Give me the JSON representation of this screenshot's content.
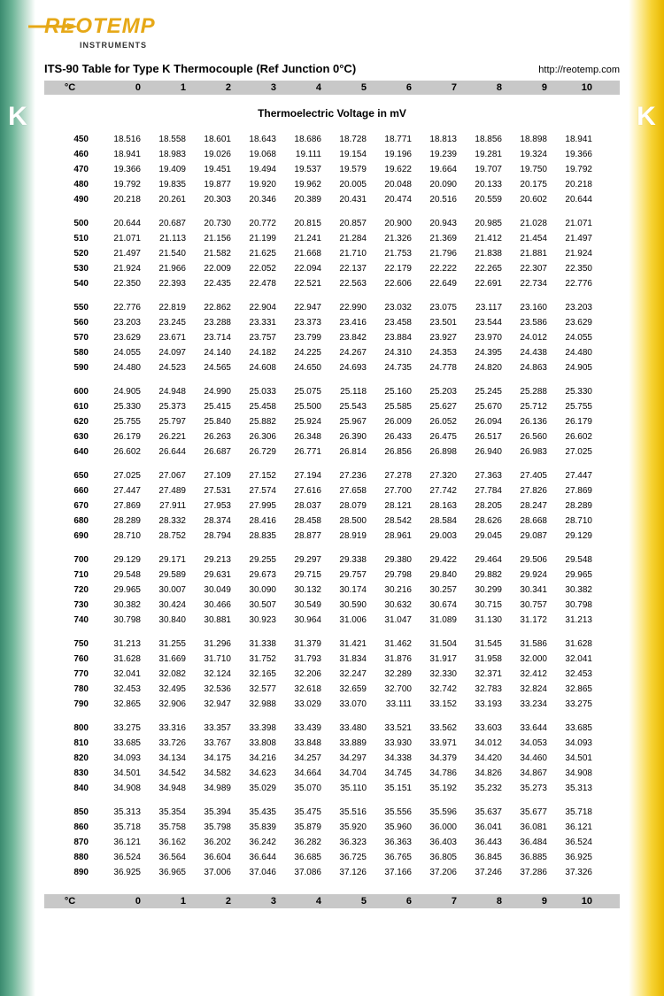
{
  "logo": {
    "brand": "REOTEMP",
    "sub": "INSTRUMENTS"
  },
  "title": "ITS-90 Table for Type K Thermocouple (Ref Junction 0°C)",
  "url": "http://reotemp.com",
  "side_letter": "K",
  "subtitle": "Thermoelectric Voltage in mV",
  "header_key": "°C",
  "cols": [
    "0",
    "1",
    "2",
    "3",
    "4",
    "5",
    "6",
    "7",
    "8",
    "9",
    "10"
  ],
  "colors": {
    "left_grad_from": "#3a8a6f",
    "right_grad_from": "#e8b800",
    "logo": "#e6a817",
    "header_bg": "#c8c8c8"
  },
  "blocks": [
    [
      {
        "t": "450",
        "v": [
          "18.516",
          "18.558",
          "18.601",
          "18.643",
          "18.686",
          "18.728",
          "18.771",
          "18.813",
          "18.856",
          "18.898",
          "18.941"
        ]
      },
      {
        "t": "460",
        "v": [
          "18.941",
          "18.983",
          "19.026",
          "19.068",
          "19.111",
          "19.154",
          "19.196",
          "19.239",
          "19.281",
          "19.324",
          "19.366"
        ]
      },
      {
        "t": "470",
        "v": [
          "19.366",
          "19.409",
          "19.451",
          "19.494",
          "19.537",
          "19.579",
          "19.622",
          "19.664",
          "19.707",
          "19.750",
          "19.792"
        ]
      },
      {
        "t": "480",
        "v": [
          "19.792",
          "19.835",
          "19.877",
          "19.920",
          "19.962",
          "20.005",
          "20.048",
          "20.090",
          "20.133",
          "20.175",
          "20.218"
        ]
      },
      {
        "t": "490",
        "v": [
          "20.218",
          "20.261",
          "20.303",
          "20.346",
          "20.389",
          "20.431",
          "20.474",
          "20.516",
          "20.559",
          "20.602",
          "20.644"
        ]
      }
    ],
    [
      {
        "t": "500",
        "v": [
          "20.644",
          "20.687",
          "20.730",
          "20.772",
          "20.815",
          "20.857",
          "20.900",
          "20.943",
          "20.985",
          "21.028",
          "21.071"
        ]
      },
      {
        "t": "510",
        "v": [
          "21.071",
          "21.113",
          "21.156",
          "21.199",
          "21.241",
          "21.284",
          "21.326",
          "21.369",
          "21.412",
          "21.454",
          "21.497"
        ]
      },
      {
        "t": "520",
        "v": [
          "21.497",
          "21.540",
          "21.582",
          "21.625",
          "21.668",
          "21.710",
          "21.753",
          "21.796",
          "21.838",
          "21.881",
          "21.924"
        ]
      },
      {
        "t": "530",
        "v": [
          "21.924",
          "21.966",
          "22.009",
          "22.052",
          "22.094",
          "22.137",
          "22.179",
          "22.222",
          "22.265",
          "22.307",
          "22.350"
        ]
      },
      {
        "t": "540",
        "v": [
          "22.350",
          "22.393",
          "22.435",
          "22.478",
          "22.521",
          "22.563",
          "22.606",
          "22.649",
          "22.691",
          "22.734",
          "22.776"
        ]
      }
    ],
    [
      {
        "t": "550",
        "v": [
          "22.776",
          "22.819",
          "22.862",
          "22.904",
          "22.947",
          "22.990",
          "23.032",
          "23.075",
          "23.117",
          "23.160",
          "23.203"
        ]
      },
      {
        "t": "560",
        "v": [
          "23.203",
          "23.245",
          "23.288",
          "23.331",
          "23.373",
          "23.416",
          "23.458",
          "23.501",
          "23.544",
          "23.586",
          "23.629"
        ]
      },
      {
        "t": "570",
        "v": [
          "23.629",
          "23.671",
          "23.714",
          "23.757",
          "23.799",
          "23.842",
          "23.884",
          "23.927",
          "23.970",
          "24.012",
          "24.055"
        ]
      },
      {
        "t": "580",
        "v": [
          "24.055",
          "24.097",
          "24.140",
          "24.182",
          "24.225",
          "24.267",
          "24.310",
          "24.353",
          "24.395",
          "24.438",
          "24.480"
        ]
      },
      {
        "t": "590",
        "v": [
          "24.480",
          "24.523",
          "24.565",
          "24.608",
          "24.650",
          "24.693",
          "24.735",
          "24.778",
          "24.820",
          "24.863",
          "24.905"
        ]
      }
    ],
    [
      {
        "t": "600",
        "v": [
          "24.905",
          "24.948",
          "24.990",
          "25.033",
          "25.075",
          "25.118",
          "25.160",
          "25.203",
          "25.245",
          "25.288",
          "25.330"
        ]
      },
      {
        "t": "610",
        "v": [
          "25.330",
          "25.373",
          "25.415",
          "25.458",
          "25.500",
          "25.543",
          "25.585",
          "25.627",
          "25.670",
          "25.712",
          "25.755"
        ]
      },
      {
        "t": "620",
        "v": [
          "25.755",
          "25.797",
          "25.840",
          "25.882",
          "25.924",
          "25.967",
          "26.009",
          "26.052",
          "26.094",
          "26.136",
          "26.179"
        ]
      },
      {
        "t": "630",
        "v": [
          "26.179",
          "26.221",
          "26.263",
          "26.306",
          "26.348",
          "26.390",
          "26.433",
          "26.475",
          "26.517",
          "26.560",
          "26.602"
        ]
      },
      {
        "t": "640",
        "v": [
          "26.602",
          "26.644",
          "26.687",
          "26.729",
          "26.771",
          "26.814",
          "26.856",
          "26.898",
          "26.940",
          "26.983",
          "27.025"
        ]
      }
    ],
    [
      {
        "t": "650",
        "v": [
          "27.025",
          "27.067",
          "27.109",
          "27.152",
          "27.194",
          "27.236",
          "27.278",
          "27.320",
          "27.363",
          "27.405",
          "27.447"
        ]
      },
      {
        "t": "660",
        "v": [
          "27.447",
          "27.489",
          "27.531",
          "27.574",
          "27.616",
          "27.658",
          "27.700",
          "27.742",
          "27.784",
          "27.826",
          "27.869"
        ]
      },
      {
        "t": "670",
        "v": [
          "27.869",
          "27.911",
          "27.953",
          "27.995",
          "28.037",
          "28.079",
          "28.121",
          "28.163",
          "28.205",
          "28.247",
          "28.289"
        ]
      },
      {
        "t": "680",
        "v": [
          "28.289",
          "28.332",
          "28.374",
          "28.416",
          "28.458",
          "28.500",
          "28.542",
          "28.584",
          "28.626",
          "28.668",
          "28.710"
        ]
      },
      {
        "t": "690",
        "v": [
          "28.710",
          "28.752",
          "28.794",
          "28.835",
          "28.877",
          "28.919",
          "28.961",
          "29.003",
          "29.045",
          "29.087",
          "29.129"
        ]
      }
    ],
    [
      {
        "t": "700",
        "v": [
          "29.129",
          "29.171",
          "29.213",
          "29.255",
          "29.297",
          "29.338",
          "29.380",
          "29.422",
          "29.464",
          "29.506",
          "29.548"
        ]
      },
      {
        "t": "710",
        "v": [
          "29.548",
          "29.589",
          "29.631",
          "29.673",
          "29.715",
          "29.757",
          "29.798",
          "29.840",
          "29.882",
          "29.924",
          "29.965"
        ]
      },
      {
        "t": "720",
        "v": [
          "29.965",
          "30.007",
          "30.049",
          "30.090",
          "30.132",
          "30.174",
          "30.216",
          "30.257",
          "30.299",
          "30.341",
          "30.382"
        ]
      },
      {
        "t": "730",
        "v": [
          "30.382",
          "30.424",
          "30.466",
          "30.507",
          "30.549",
          "30.590",
          "30.632",
          "30.674",
          "30.715",
          "30.757",
          "30.798"
        ]
      },
      {
        "t": "740",
        "v": [
          "30.798",
          "30.840",
          "30.881",
          "30.923",
          "30.964",
          "31.006",
          "31.047",
          "31.089",
          "31.130",
          "31.172",
          "31.213"
        ]
      }
    ],
    [
      {
        "t": "750",
        "v": [
          "31.213",
          "31.255",
          "31.296",
          "31.338",
          "31.379",
          "31.421",
          "31.462",
          "31.504",
          "31.545",
          "31.586",
          "31.628"
        ]
      },
      {
        "t": "760",
        "v": [
          "31.628",
          "31.669",
          "31.710",
          "31.752",
          "31.793",
          "31.834",
          "31.876",
          "31.917",
          "31.958",
          "32.000",
          "32.041"
        ]
      },
      {
        "t": "770",
        "v": [
          "32.041",
          "32.082",
          "32.124",
          "32.165",
          "32.206",
          "32.247",
          "32.289",
          "32.330",
          "32.371",
          "32.412",
          "32.453"
        ]
      },
      {
        "t": "780",
        "v": [
          "32.453",
          "32.495",
          "32.536",
          "32.577",
          "32.618",
          "32.659",
          "32.700",
          "32.742",
          "32.783",
          "32.824",
          "32.865"
        ]
      },
      {
        "t": "790",
        "v": [
          "32.865",
          "32.906",
          "32.947",
          "32.988",
          "33.029",
          "33.070",
          "33.111",
          "33.152",
          "33.193",
          "33.234",
          "33.275"
        ]
      }
    ],
    [
      {
        "t": "800",
        "v": [
          "33.275",
          "33.316",
          "33.357",
          "33.398",
          "33.439",
          "33.480",
          "33.521",
          "33.562",
          "33.603",
          "33.644",
          "33.685"
        ]
      },
      {
        "t": "810",
        "v": [
          "33.685",
          "33.726",
          "33.767",
          "33.808",
          "33.848",
          "33.889",
          "33.930",
          "33.971",
          "34.012",
          "34.053",
          "34.093"
        ]
      },
      {
        "t": "820",
        "v": [
          "34.093",
          "34.134",
          "34.175",
          "34.216",
          "34.257",
          "34.297",
          "34.338",
          "34.379",
          "34.420",
          "34.460",
          "34.501"
        ]
      },
      {
        "t": "830",
        "v": [
          "34.501",
          "34.542",
          "34.582",
          "34.623",
          "34.664",
          "34.704",
          "34.745",
          "34.786",
          "34.826",
          "34.867",
          "34.908"
        ]
      },
      {
        "t": "840",
        "v": [
          "34.908",
          "34.948",
          "34.989",
          "35.029",
          "35.070",
          "35.110",
          "35.151",
          "35.192",
          "35.232",
          "35.273",
          "35.313"
        ]
      }
    ],
    [
      {
        "t": "850",
        "v": [
          "35.313",
          "35.354",
          "35.394",
          "35.435",
          "35.475",
          "35.516",
          "35.556",
          "35.596",
          "35.637",
          "35.677",
          "35.718"
        ]
      },
      {
        "t": "860",
        "v": [
          "35.718",
          "35.758",
          "35.798",
          "35.839",
          "35.879",
          "35.920",
          "35.960",
          "36.000",
          "36.041",
          "36.081",
          "36.121"
        ]
      },
      {
        "t": "870",
        "v": [
          "36.121",
          "36.162",
          "36.202",
          "36.242",
          "36.282",
          "36.323",
          "36.363",
          "36.403",
          "36.443",
          "36.484",
          "36.524"
        ]
      },
      {
        "t": "880",
        "v": [
          "36.524",
          "36.564",
          "36.604",
          "36.644",
          "36.685",
          "36.725",
          "36.765",
          "36.805",
          "36.845",
          "36.885",
          "36.925"
        ]
      },
      {
        "t": "890",
        "v": [
          "36.925",
          "36.965",
          "37.006",
          "37.046",
          "37.086",
          "37.126",
          "37.166",
          "37.206",
          "37.246",
          "37.286",
          "37.326"
        ]
      }
    ]
  ]
}
